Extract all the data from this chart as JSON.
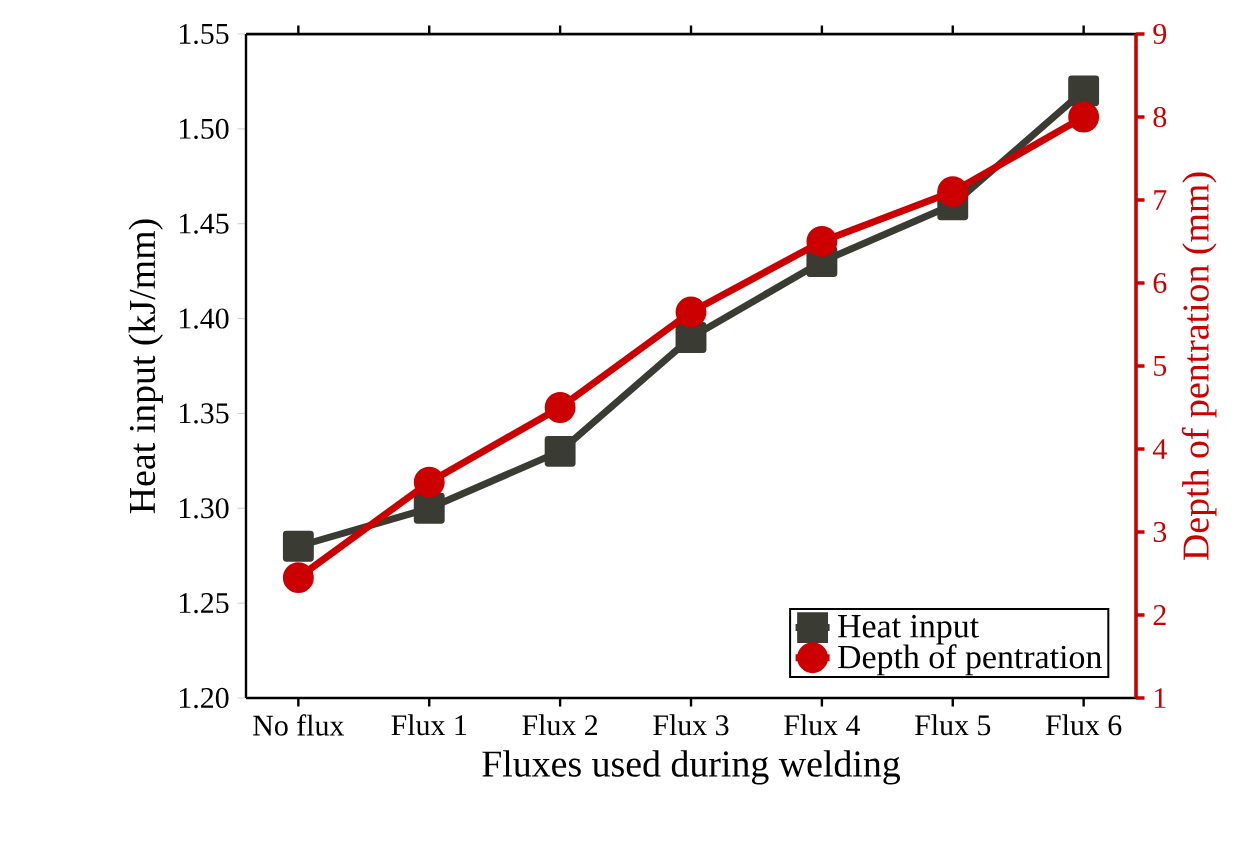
{
  "chart_data": {
    "type": "line",
    "xlabel": "Fluxes used during welding",
    "ylabel": "Heat input (kJ/mm)",
    "y2label": "Depth of pentration (mm)",
    "categories": [
      "No flux",
      "Flux 1",
      "Flux 2",
      "Flux 3",
      "Flux 4",
      "Flux 5",
      "Flux 6"
    ],
    "series": [
      {
        "name": "Heat input",
        "color": "#3a3b33",
        "marker": "square",
        "values": [
          1.28,
          1.3,
          1.33,
          1.39,
          1.43,
          1.46,
          1.52
        ]
      },
      {
        "name": "Depth of pentration",
        "color": "#cc0000",
        "marker": "circle",
        "axis": "y2",
        "values": [
          2.45,
          3.6,
          4.5,
          5.65,
          6.5,
          7.1,
          8.0
        ]
      }
    ],
    "ylim": [
      1.2,
      1.55
    ],
    "yticks": [
      {
        "value": 1.2,
        "label": "1.20"
      },
      {
        "value": 1.25,
        "label": "1.25"
      },
      {
        "value": 1.3,
        "label": "1.30"
      },
      {
        "value": 1.35,
        "label": "1.35"
      },
      {
        "value": 1.4,
        "label": "1.40"
      },
      {
        "value": 1.45,
        "label": "1.45"
      },
      {
        "value": 1.5,
        "label": "1.50"
      },
      {
        "value": 1.55,
        "label": "1.55"
      }
    ],
    "y2lim": [
      1,
      9
    ],
    "y2ticks": [
      1,
      2,
      3,
      4,
      5,
      6,
      7,
      8,
      9
    ],
    "legend": "bottom right",
    "grid": false,
    "line_style": "solid"
  }
}
